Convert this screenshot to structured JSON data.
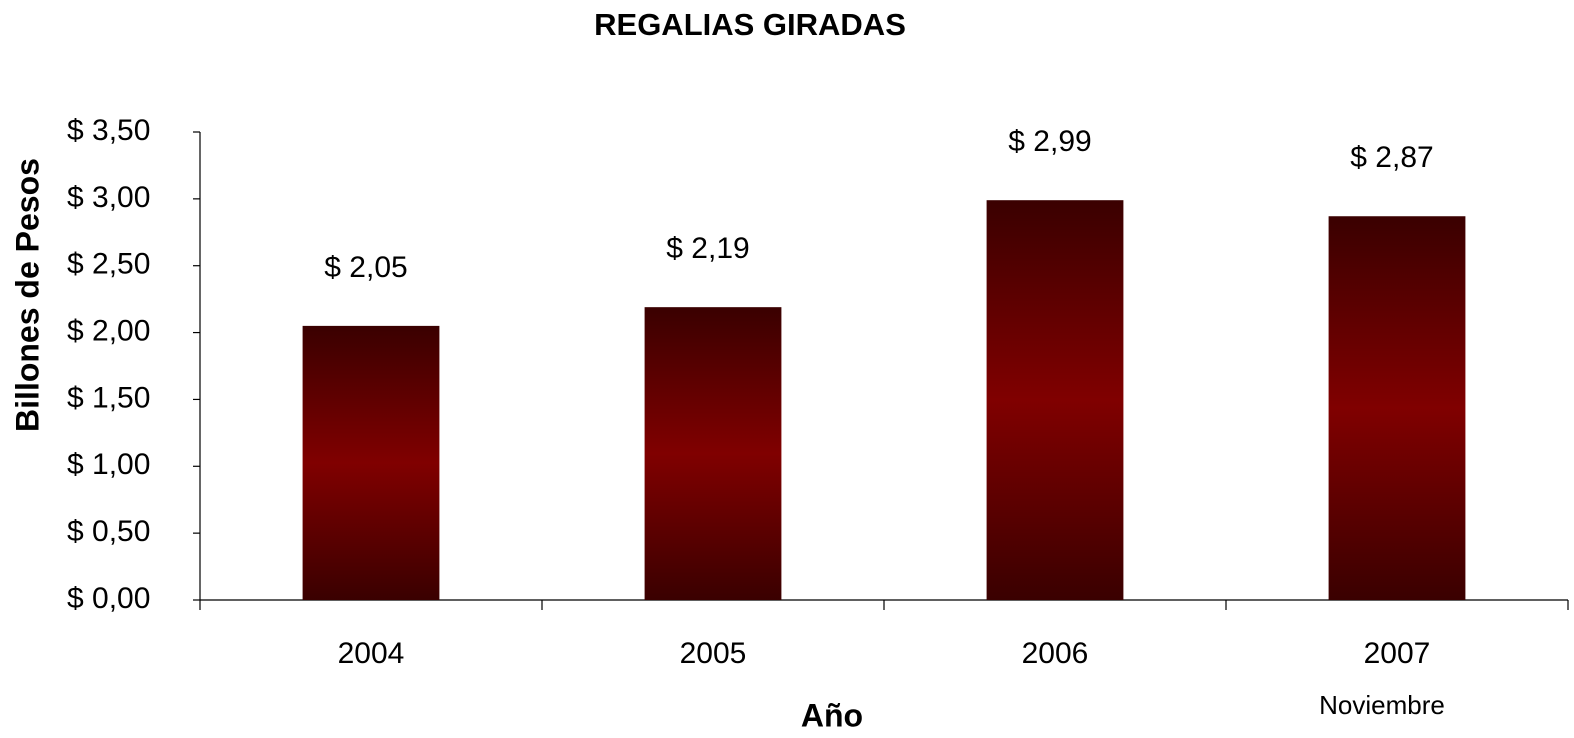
{
  "chart_data": {
    "type": "bar",
    "title": "REGALIAS GIRADAS",
    "x_label": "Año",
    "y_label": "Billones de Pesos",
    "annotation": "Noviembre",
    "categories": [
      "2004",
      "2005",
      "2006",
      "2007"
    ],
    "values": [
      2.05,
      2.19,
      2.99,
      2.87
    ],
    "value_labels": [
      "$ 2,05",
      "$ 2,19",
      "$ 2,99",
      "$ 2,87"
    ],
    "color": "#800000",
    "ylim": [
      0,
      3.5
    ],
    "yticks": [
      {
        "value": 0,
        "label": "$ 0,00"
      },
      {
        "value": 0.5,
        "label": "$ 0,50"
      },
      {
        "value": 1,
        "label": "$ 1,00"
      },
      {
        "value": 1.5,
        "label": "$ 1,50"
      },
      {
        "value": 2,
        "label": "$ 2,00"
      },
      {
        "value": 2.5,
        "label": "$ 2,50"
      },
      {
        "value": 3,
        "label": "$ 3,00"
      },
      {
        "value": 3.5,
        "label": "$ 3,50"
      }
    ],
    "grid": false
  }
}
